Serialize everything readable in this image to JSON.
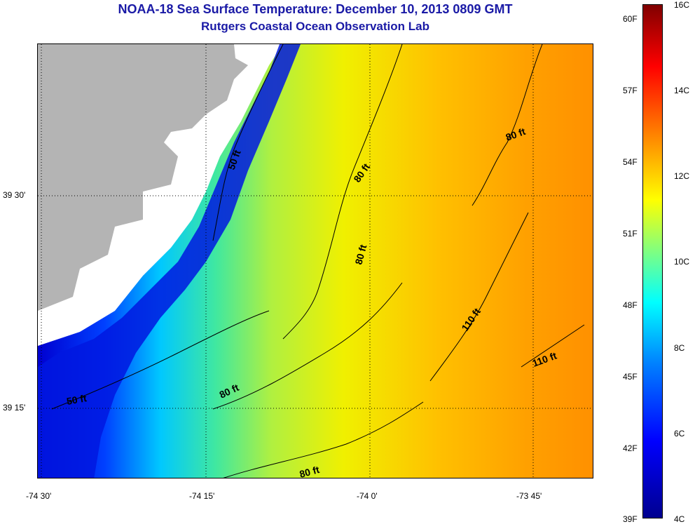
{
  "header": {
    "title": "NOAA-18 Sea Surface Temperature:  December 10, 2013 0809 GMT",
    "subtitle": "Rutgers Coastal Ocean Observation Lab"
  },
  "map": {
    "x_axis_labels": [
      "-74 30'",
      "-74 15'",
      "-74 0'",
      "-73 45'"
    ],
    "y_axis_labels": [
      "39 30'",
      "39 15'"
    ],
    "depth_contour_labels": [
      "50 ft",
      "50 ft",
      "80 ft",
      "80 ft",
      "80 ft",
      "80 ft",
      "80 ft",
      "110 ft",
      "110 ft"
    ],
    "colors": {
      "land": "#b4b4b4",
      "no_data": "#ffffff",
      "contour": "#000000"
    }
  },
  "colorbar": {
    "fahrenheit_labels": [
      "60F",
      "57F",
      "54F",
      "51F",
      "48F",
      "45F",
      "42F",
      "39F"
    ],
    "celsius_labels": [
      "16C",
      "14C",
      "12C",
      "10C",
      "8C",
      "6C",
      "4C"
    ],
    "gradient_colors": [
      "#00008f",
      "#0000ff",
      "#0080ff",
      "#00ffff",
      "#80ff80",
      "#ffff00",
      "#ff8000",
      "#ff0000",
      "#800000"
    ]
  }
}
